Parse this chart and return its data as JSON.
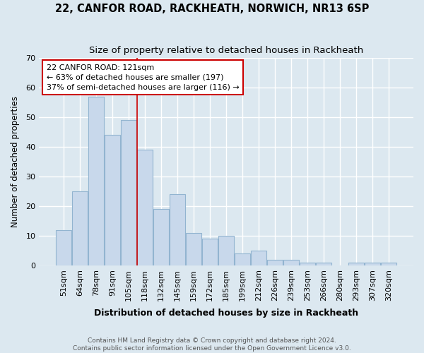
{
  "title": "22, CANFOR ROAD, RACKHEATH, NORWICH, NR13 6SP",
  "subtitle": "Size of property relative to detached houses in Rackheath",
  "xlabel": "Distribution of detached houses by size in Rackheath",
  "ylabel": "Number of detached properties",
  "categories": [
    "51sqm",
    "64sqm",
    "78sqm",
    "91sqm",
    "105sqm",
    "118sqm",
    "132sqm",
    "145sqm",
    "159sqm",
    "172sqm",
    "185sqm",
    "199sqm",
    "212sqm",
    "226sqm",
    "239sqm",
    "253sqm",
    "266sqm",
    "280sqm",
    "293sqm",
    "307sqm",
    "320sqm"
  ],
  "values": [
    12,
    25,
    57,
    44,
    49,
    39,
    19,
    24,
    11,
    9,
    10,
    4,
    5,
    2,
    2,
    1,
    1,
    0,
    1,
    1,
    1
  ],
  "bar_color": "#c8d8eb",
  "bar_edge_color": "#92b4d0",
  "red_line_index": 5,
  "annotation_line1": "22 CANFOR ROAD: 121sqm",
  "annotation_line2": "← 63% of detached houses are smaller (197)",
  "annotation_line3": "37% of semi-detached houses are larger (116) →",
  "annotation_box_color": "#ffffff",
  "annotation_box_edge_color": "#cc0000",
  "ylim": [
    0,
    70
  ],
  "yticks": [
    0,
    10,
    20,
    30,
    40,
    50,
    60,
    70
  ],
  "background_color": "#dce8f0",
  "grid_color": "#ffffff",
  "footer_line1": "Contains HM Land Registry data © Crown copyright and database right 2024.",
  "footer_line2": "Contains public sector information licensed under the Open Government Licence v3.0.",
  "title_fontsize": 10.5,
  "subtitle_fontsize": 9.5,
  "xlabel_fontsize": 9,
  "ylabel_fontsize": 8.5,
  "tick_fontsize": 8,
  "annotation_fontsize": 8,
  "footer_fontsize": 6.5
}
